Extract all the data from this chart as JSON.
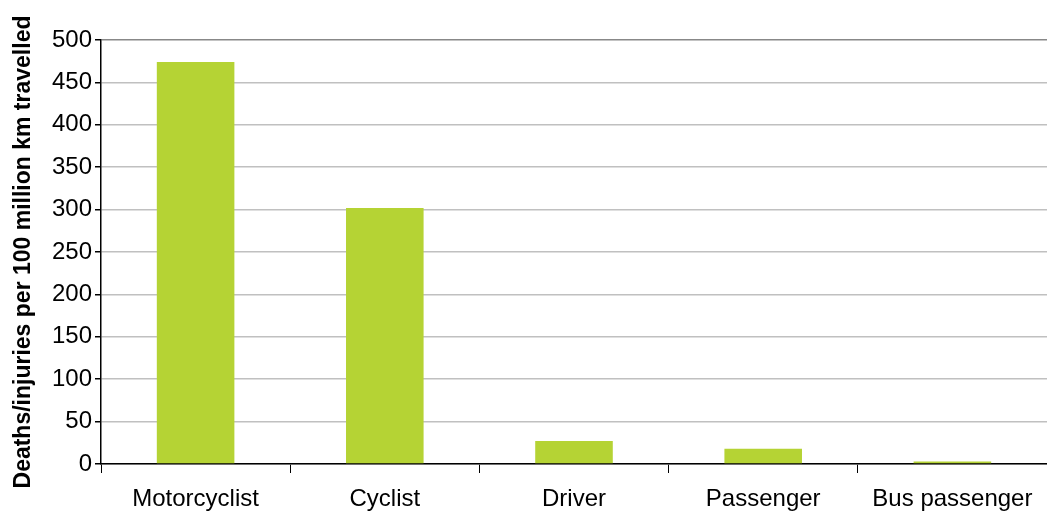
{
  "chart_data": {
    "type": "bar",
    "ylabel": "Deaths/injuries per 100 million km travelled",
    "categories": [
      "Motorcyclist",
      "Cyclist",
      "Driver",
      "Passenger",
      "Bus passenger"
    ],
    "values": [
      474,
      302,
      27,
      18,
      3
    ],
    "color": "#b5d334",
    "ylim": [
      0,
      500
    ],
    "yticks": [
      0,
      50,
      100,
      150,
      200,
      250,
      300,
      350,
      400,
      450,
      500
    ],
    "grid": "y"
  }
}
